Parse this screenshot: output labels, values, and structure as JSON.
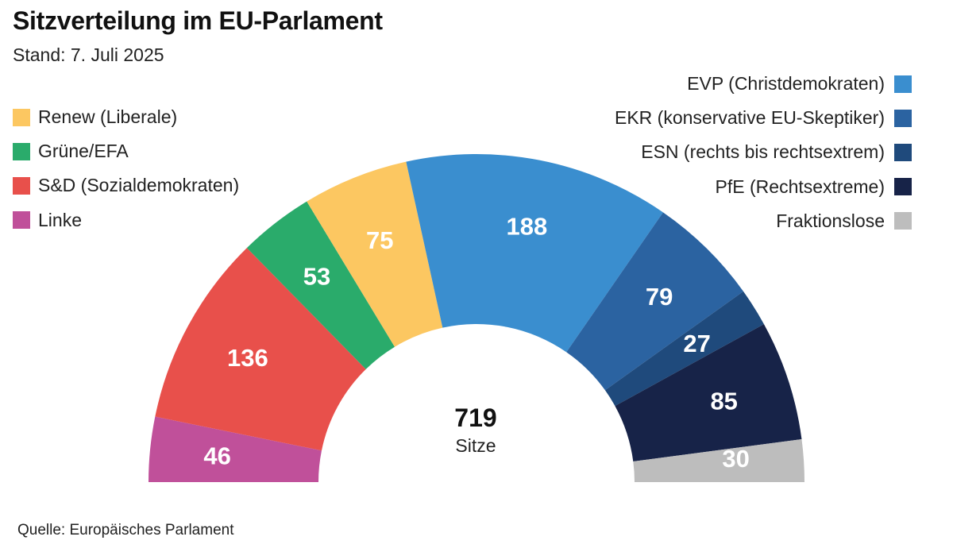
{
  "title": "Sitzverteilung im EU-Parlament",
  "subtitle": "Stand: 7. Juli 2025",
  "source": "Quelle: Europäisches Parlament",
  "chart_data": {
    "type": "pie",
    "variant": "half-donut (hemicycle)",
    "title": "Sitzverteilung im EU-Parlament",
    "total": 719,
    "total_value": "719",
    "total_label": "Sitze",
    "segments": [
      {
        "id": "linke",
        "label": "Linke",
        "value": 46,
        "color": "#c0509a",
        "label_color": "#ffffff"
      },
      {
        "id": "sd",
        "label": "S&D (Sozialdemokraten)",
        "value": 136,
        "color": "#e8504b",
        "label_color": "#ffffff"
      },
      {
        "id": "gruene",
        "label": "Grüne/EFA",
        "value": 53,
        "color": "#2aab6b",
        "label_color": "#ffffff"
      },
      {
        "id": "renew",
        "label": "Renew (Liberale)",
        "value": 75,
        "color": "#fcc761",
        "label_color": "#ffffff"
      },
      {
        "id": "evp",
        "label": "EVP (Christdemokraten)",
        "value": 188,
        "color": "#3a8ecf",
        "label_color": "#ffffff"
      },
      {
        "id": "ekr",
        "label": "EKR (konservative EU-Skeptiker)",
        "value": 79,
        "color": "#2b63a1",
        "label_color": "#ffffff"
      },
      {
        "id": "esn",
        "label": "ESN (rechts bis rechtsextrem)",
        "value": 27,
        "color": "#1f4a7c",
        "label_color": "#ffffff"
      },
      {
        "id": "pfe",
        "label": "PfE (Rechtsextreme)",
        "value": 85,
        "color": "#172348",
        "label_color": "#ffffff"
      },
      {
        "id": "nonattached",
        "label": "Fraktionslose",
        "value": 30,
        "color": "#bdbdbd",
        "label_color": "#ffffff"
      }
    ]
  },
  "legend": {
    "left": [
      {
        "label": "Renew (Liberale)",
        "color": "#fcc761"
      },
      {
        "label": "Grüne/EFA",
        "color": "#2aab6b"
      },
      {
        "label": "S&D (Sozialdemokraten)",
        "color": "#e8504b"
      },
      {
        "label": "Linke",
        "color": "#c0509a"
      }
    ],
    "right": [
      {
        "label": "EVP (Christdemokraten)",
        "color": "#3a8ecf"
      },
      {
        "label": "EKR (konservative EU-Skeptiker)",
        "color": "#2b63a1"
      },
      {
        "label": "ESN (rechts bis rechtsextrem)",
        "color": "#1f4a7c"
      },
      {
        "label": "PfE (Rechtsextreme)",
        "color": "#172348"
      },
      {
        "label": "Fraktionslose",
        "color": "#bdbdbd"
      }
    ]
  }
}
